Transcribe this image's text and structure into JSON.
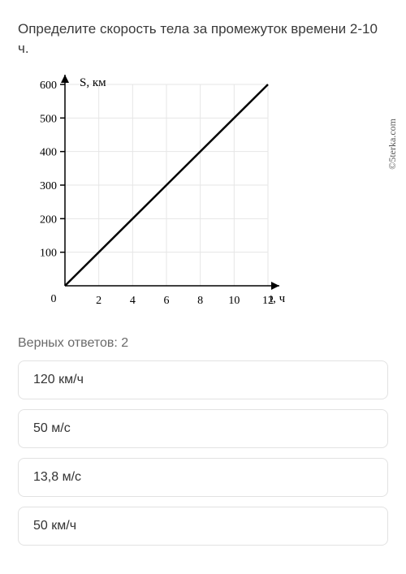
{
  "question": "Определите скорость тела за промежуток времени 2-10 ч.",
  "watermark": "©5terka.com",
  "chart": {
    "type": "line",
    "y_label": "S, км",
    "x_label": "t, ч",
    "x_ticks": [
      2,
      4,
      6,
      8,
      10,
      12
    ],
    "y_ticks": [
      100,
      200,
      300,
      400,
      500,
      600
    ],
    "xlim": [
      0,
      12
    ],
    "ylim": [
      0,
      600
    ],
    "grid_color": "#e6e6e6",
    "axis_color": "#000000",
    "line_color": "#000000",
    "line_width": 2.5,
    "background": "#ffffff",
    "tick_font_size": 14,
    "label_font_size": 15,
    "data_points": [
      [
        0,
        0
      ],
      [
        12,
        600
      ]
    ],
    "arrowheads": true
  },
  "hint": "Верных ответов: 2",
  "answers": [
    {
      "text": "120 км/ч"
    },
    {
      "text": "50 м/с"
    },
    {
      "text": "13,8 м/с"
    },
    {
      "text": "50 км/ч"
    }
  ]
}
